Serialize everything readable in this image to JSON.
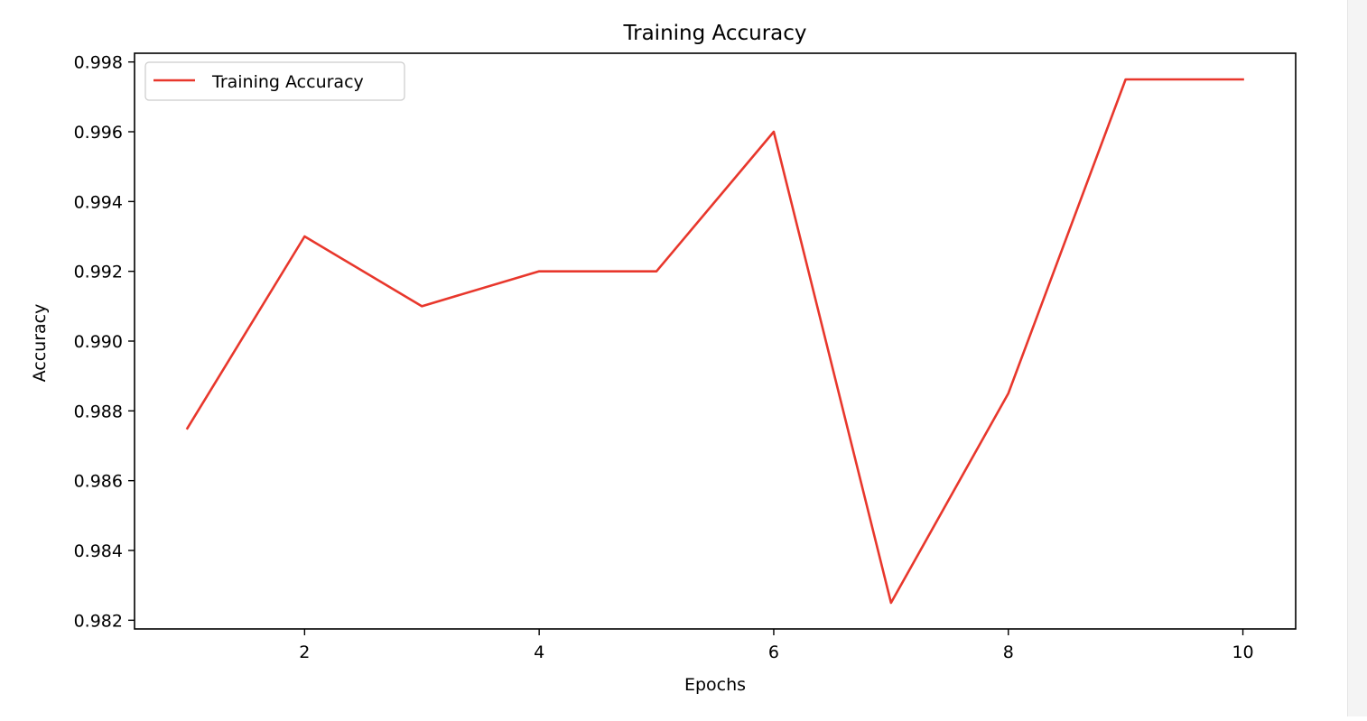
{
  "chart_data": {
    "type": "line",
    "title": "Training Accuracy",
    "xlabel": "Epochs",
    "ylabel": "Accuracy",
    "x": [
      1,
      2,
      3,
      4,
      5,
      6,
      7,
      8,
      9,
      10
    ],
    "series": [
      {
        "name": "Training Accuracy",
        "color": "#e8372c",
        "values": [
          0.9875,
          0.993,
          0.991,
          0.992,
          0.992,
          0.996,
          0.9825,
          0.9885,
          0.9975,
          0.9975
        ]
      }
    ],
    "xlim": [
      0.55,
      10.45
    ],
    "ylim": [
      0.98175,
      0.99825
    ],
    "xticks": [
      2,
      4,
      6,
      8,
      10
    ],
    "xtick_labels": [
      "2",
      "4",
      "6",
      "8",
      "10"
    ],
    "yticks": [
      0.982,
      0.984,
      0.986,
      0.988,
      0.99,
      0.992,
      0.994,
      0.996,
      0.998
    ],
    "ytick_labels": [
      "0.982",
      "0.984",
      "0.986",
      "0.988",
      "0.990",
      "0.992",
      "0.994",
      "0.996",
      "0.998"
    ],
    "grid": false,
    "legend_position": "top-left"
  }
}
